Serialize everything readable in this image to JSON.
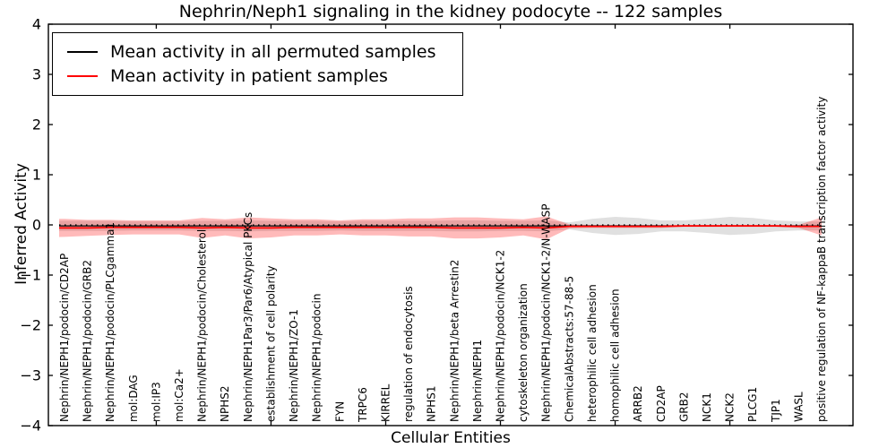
{
  "chart_data": {
    "type": "line",
    "title": "Nephrin/Neph1 signaling in the kidney podocyte -- 122 samples",
    "xlabel": "Cellular Entities",
    "ylabel": "Inferred Activity",
    "ylim": [
      -4,
      4
    ],
    "yticks": [
      4,
      3,
      2,
      1,
      0,
      -1,
      -2,
      -3,
      -4
    ],
    "xticks_at_entities": [
      5,
      10,
      15,
      20,
      25,
      30
    ],
    "grid": false,
    "legend_position": "upper left",
    "zero_line": {
      "value": 0,
      "style": "dotted",
      "color": "#000000"
    },
    "entities": [
      "Nephrin/NEPH1/podocin/CD2AP",
      "Nephrin/NEPH1/podocin/GRB2",
      "Nephrin/NEPH1/podocin/PLCgamma1",
      "mol:DAG",
      "mol:IP3",
      "mol:Ca2+",
      "Nephrin/NEPH1/podocin/Cholesterol",
      "NPHS2",
      "Nephrin/NEPH1Par3/Par6/Atypical PKCs",
      "establishment of cell polarity",
      "Nephrin/NEPH1/ZO-1",
      "Nephrin/NEPH1/podocin",
      "FYN",
      "TRPC6",
      "KIRREL",
      "regulation of endocytosis",
      "NPHS1",
      "Nephrin/NEPH1/beta Arrestin2",
      "Nephrin/NEPH1",
      "Nephrin/NEPH1/podocin/NCK1-2",
      "cytoskeleton organization",
      "Nephrin/NEPH1/podocin/NCK1-2/N-WASP",
      "ChemicalAbstracts:57-88-5",
      "heterophilic cell adhesion",
      "homophilic cell adhesion",
      "ARRB2",
      "CD2AP",
      "GRB2",
      "NCK1",
      "NCK2",
      "PLCG1",
      "TJP1",
      "WASL",
      "positive regulation of NF-kappaB transcription factor activity"
    ],
    "series": [
      {
        "name": "Mean activity in all permuted samples",
        "color": "#000000",
        "band_fill": "#000000",
        "band_opacity": 0.12,
        "line_width": 1.2,
        "mean": [
          -0.02,
          -0.02,
          -0.02,
          -0.02,
          -0.02,
          -0.02,
          -0.02,
          -0.02,
          -0.02,
          -0.02,
          -0.02,
          -0.02,
          -0.02,
          -0.02,
          -0.02,
          -0.02,
          -0.02,
          -0.02,
          -0.02,
          -0.02,
          -0.02,
          -0.02,
          -0.02,
          -0.02,
          -0.02,
          -0.02,
          -0.02,
          -0.02,
          -0.02,
          -0.02,
          -0.02,
          -0.02,
          -0.02,
          -0.02
        ],
        "band_halfwidth": [
          0.1,
          0.1,
          0.1,
          0.09,
          0.09,
          0.09,
          0.1,
          0.1,
          0.11,
          0.1,
          0.1,
          0.1,
          0.09,
          0.1,
          0.1,
          0.1,
          0.1,
          0.11,
          0.11,
          0.1,
          0.1,
          0.11,
          0.07,
          0.14,
          0.18,
          0.16,
          0.11,
          0.11,
          0.14,
          0.18,
          0.16,
          0.11,
          0.09,
          0.09
        ]
      },
      {
        "name": "Mean activity in patient samples",
        "color": "#ff0000",
        "band_fill": "#ff0000",
        "band_opacity": 0.27,
        "line_width": 1.7,
        "mean": [
          -0.06,
          -0.06,
          -0.05,
          -0.05,
          -0.05,
          -0.05,
          -0.06,
          -0.05,
          -0.06,
          -0.06,
          -0.05,
          -0.05,
          -0.05,
          -0.05,
          -0.05,
          -0.05,
          -0.05,
          -0.06,
          -0.06,
          -0.06,
          -0.05,
          -0.06,
          -0.03,
          -0.03,
          -0.03,
          -0.03,
          -0.03,
          -0.02,
          -0.02,
          -0.02,
          -0.02,
          -0.02,
          -0.03,
          -0.03
        ],
        "band_halfwidth": [
          0.18,
          0.16,
          0.15,
          0.14,
          0.14,
          0.14,
          0.2,
          0.16,
          0.21,
          0.19,
          0.16,
          0.16,
          0.14,
          0.16,
          0.16,
          0.18,
          0.18,
          0.21,
          0.21,
          0.19,
          0.16,
          0.23,
          0.04,
          0.03,
          0.03,
          0.03,
          0.03,
          0.02,
          0.02,
          0.02,
          0.02,
          0.02,
          0.03,
          0.18
        ]
      }
    ]
  }
}
